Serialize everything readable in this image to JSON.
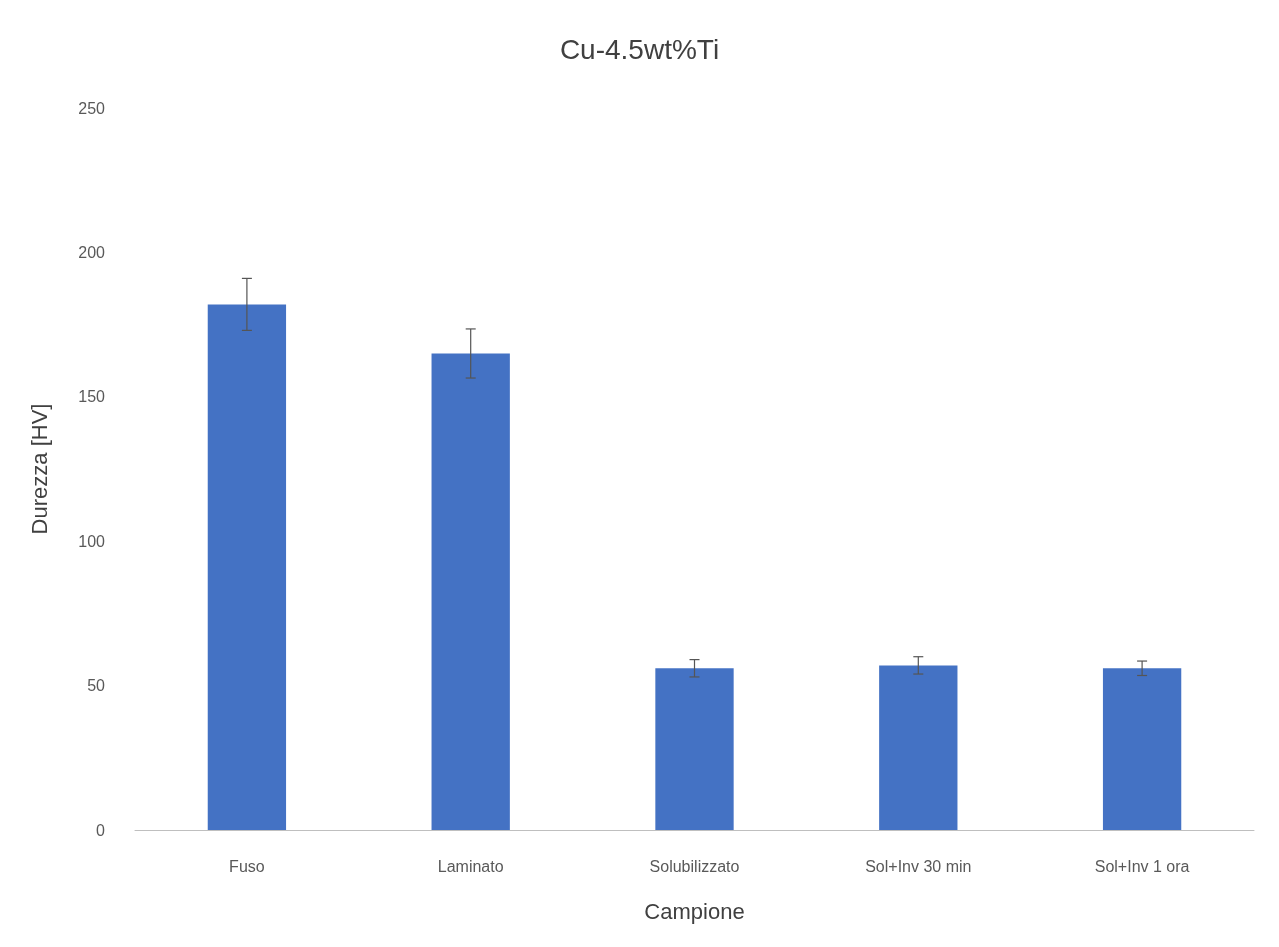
{
  "chart_data": {
    "type": "bar",
    "title": "Cu-4.5wt%Ti",
    "xlabel": "Campione",
    "ylabel": "Durezza [HV]",
    "categories": [
      "Fuso",
      "Laminato",
      "Solubilizzato",
      "Sol+Inv 30 min",
      "Sol+Inv 1 ora"
    ],
    "values": [
      182,
      165,
      56,
      57,
      56
    ],
    "errors": [
      9,
      8.5,
      3,
      3,
      2.5
    ],
    "color": "#4472c4",
    "ylim": [
      0,
      250
    ],
    "yticks": [
      0,
      50,
      100,
      150,
      200,
      250
    ],
    "grid": false
  }
}
